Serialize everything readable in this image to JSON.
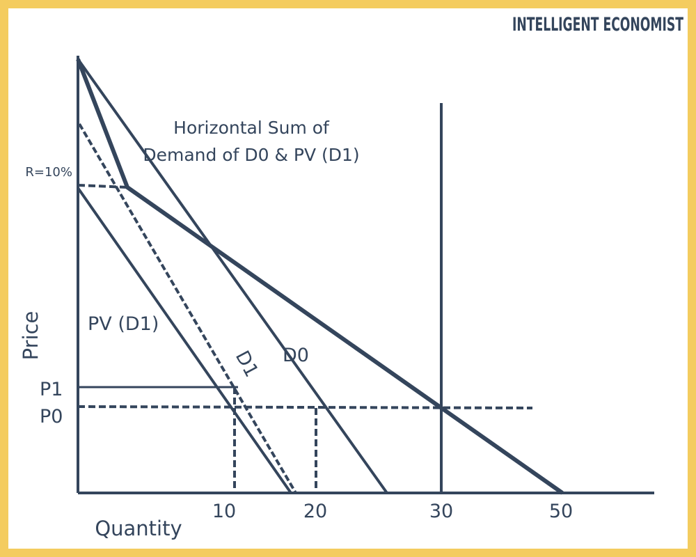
{
  "brand": "INTELLIGENT ECONOMIST",
  "colors": {
    "frame": "#f4cc5f",
    "ink": "#34455c",
    "background": "#ffffff"
  },
  "axes": {
    "y_label": "Price",
    "x_label": "Quantity",
    "x_ticks": [
      "10",
      "20",
      "30",
      "50"
    ]
  },
  "annotation": {
    "line1": "Horizontal Sum of",
    "line2": "Demand of D0 & PV (D1)"
  },
  "price_labels": {
    "rate": "R=10%",
    "p1": "P1",
    "p0": "P0"
  },
  "curve_labels": {
    "pv": "PV (D1)",
    "d1": "D1",
    "d0": "D0"
  }
}
